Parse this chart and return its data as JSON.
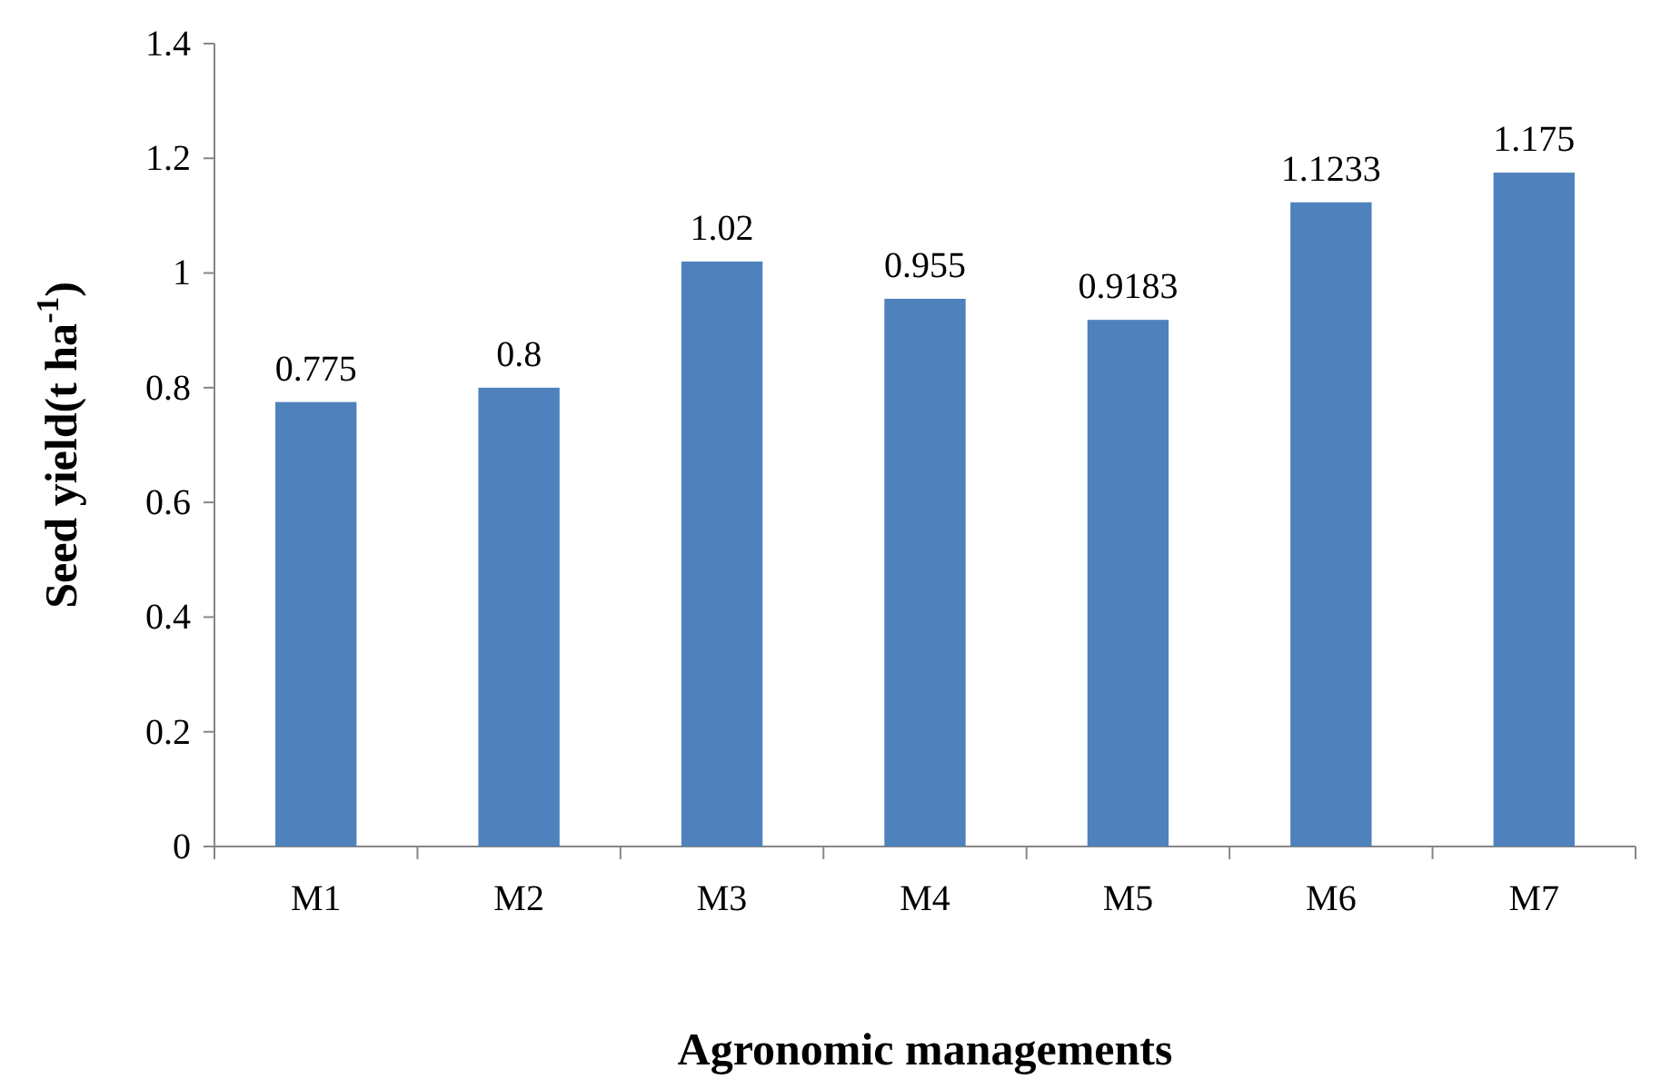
{
  "chart_data": {
    "type": "bar",
    "xlabel": "Agronomic managements",
    "ylabel": "Seed yield(t ha$^{-1}$)",
    "categories": [
      "M1",
      "M2",
      "M3",
      "M4",
      "M5",
      "M6",
      "M7"
    ],
    "values": [
      0.775,
      0.8,
      1.02,
      0.955,
      0.9183,
      1.1233,
      1.175
    ],
    "color": "#4f81bd",
    "data_labels": true,
    "grid": false,
    "ylim": [
      0,
      1.4
    ],
    "yticks": [
      0,
      0.2,
      0.4,
      0.6,
      0.8,
      1,
      1.2,
      1.4
    ]
  }
}
